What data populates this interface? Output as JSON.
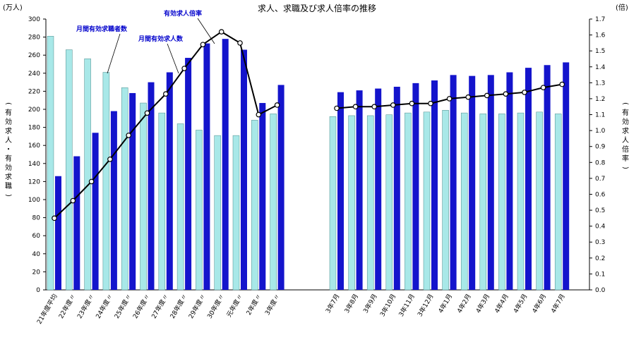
{
  "chart_data": {
    "type": "bar",
    "title": "求人、求職及び求人倍率の推移",
    "left_axis": {
      "unit": "(万人)",
      "label": "(有効求人・有効求職)",
      "range": [
        0,
        300
      ],
      "step": 20
    },
    "right_axis": {
      "unit": "(倍)",
      "label": "(有効求人倍率)",
      "range": [
        0,
        1.7
      ],
      "step": 0.1
    },
    "annotations": {
      "seekers": "月間有効求職者数",
      "openings": "月間有効求人数",
      "ratio": "有効求人倍率"
    },
    "colors": {
      "seekers": "#a8e8e8",
      "openings": "#1414cc",
      "ratio": "#000000"
    },
    "categories": [
      "21年度平均",
      "22年度〃",
      "23年度〃",
      "24年度〃",
      "25年度〃",
      "26年度〃",
      "27年度〃",
      "28年度〃",
      "29年度〃",
      "30年度〃",
      "元年度〃",
      "2年度〃",
      "3年度〃",
      "3年7月",
      "3年8月",
      "3年9月",
      "3年10月",
      "3年11月",
      "3年12月",
      "4年1月",
      "4年2月",
      "4年3月",
      "4年4月",
      "4年5月",
      "4年6月",
      "4年7月"
    ],
    "series": [
      {
        "name": "月間有効求職者数",
        "values": [
          281,
          266,
          256,
          241,
          224,
          207,
          196,
          184,
          177,
          171,
          171,
          188,
          195,
          192,
          193,
          193,
          194,
          196,
          197,
          199,
          196,
          195,
          195,
          196,
          197,
          195
        ]
      },
      {
        "name": "月間有効求人数",
        "values": [
          126,
          148,
          174,
          198,
          218,
          230,
          241,
          257,
          273,
          278,
          266,
          207,
          227,
          219,
          221,
          223,
          225,
          229,
          232,
          238,
          237,
          238,
          241,
          246,
          249,
          252
        ]
      },
      {
        "name": "有効求人倍率",
        "values": [
          0.45,
          0.56,
          0.68,
          0.82,
          0.97,
          1.11,
          1.23,
          1.39,
          1.54,
          1.62,
          1.55,
          1.1,
          1.16,
          1.14,
          1.15,
          1.15,
          1.16,
          1.17,
          1.17,
          1.2,
          1.21,
          1.22,
          1.23,
          1.24,
          1.27,
          1.29
        ]
      }
    ]
  }
}
